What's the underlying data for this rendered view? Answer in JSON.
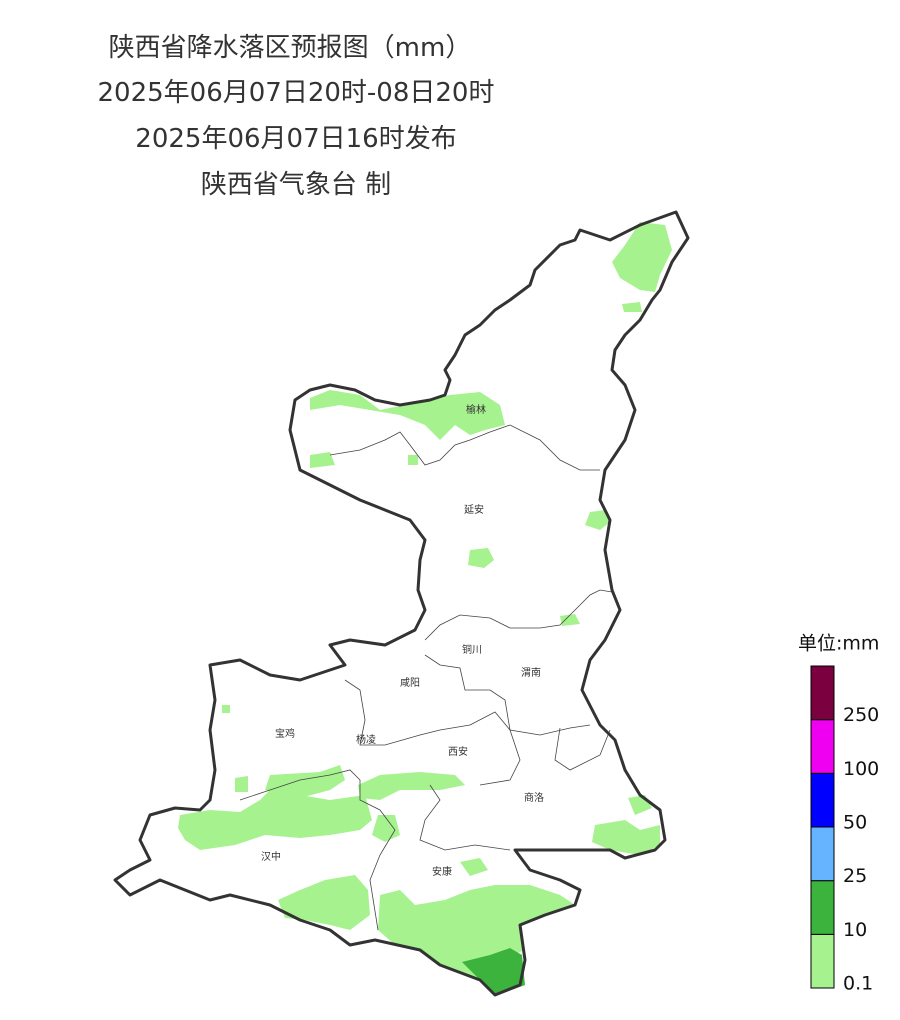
{
  "header": {
    "title": "陕西省降水落区预报图（mm）",
    "period": "2025年06月07日20时-08日20时",
    "issued": "2025年06月07日16时发布",
    "issuer": "陕西省气象台 制"
  },
  "map": {
    "cities": [
      "榆林",
      "延安",
      "铜川",
      "咸阳",
      "渭南",
      "宝鸡",
      "杨凌",
      "西安",
      "商洛",
      "汉中",
      "安康"
    ]
  },
  "legend": {
    "unit": "单位:mm",
    "labels": [
      0.1,
      10,
      25,
      50,
      100,
      250
    ],
    "colors": [
      "#a6f28f",
      "#3cb33c",
      "#66b3ff",
      "#0000ff",
      "#f000f0",
      "#7a0040"
    ]
  }
}
